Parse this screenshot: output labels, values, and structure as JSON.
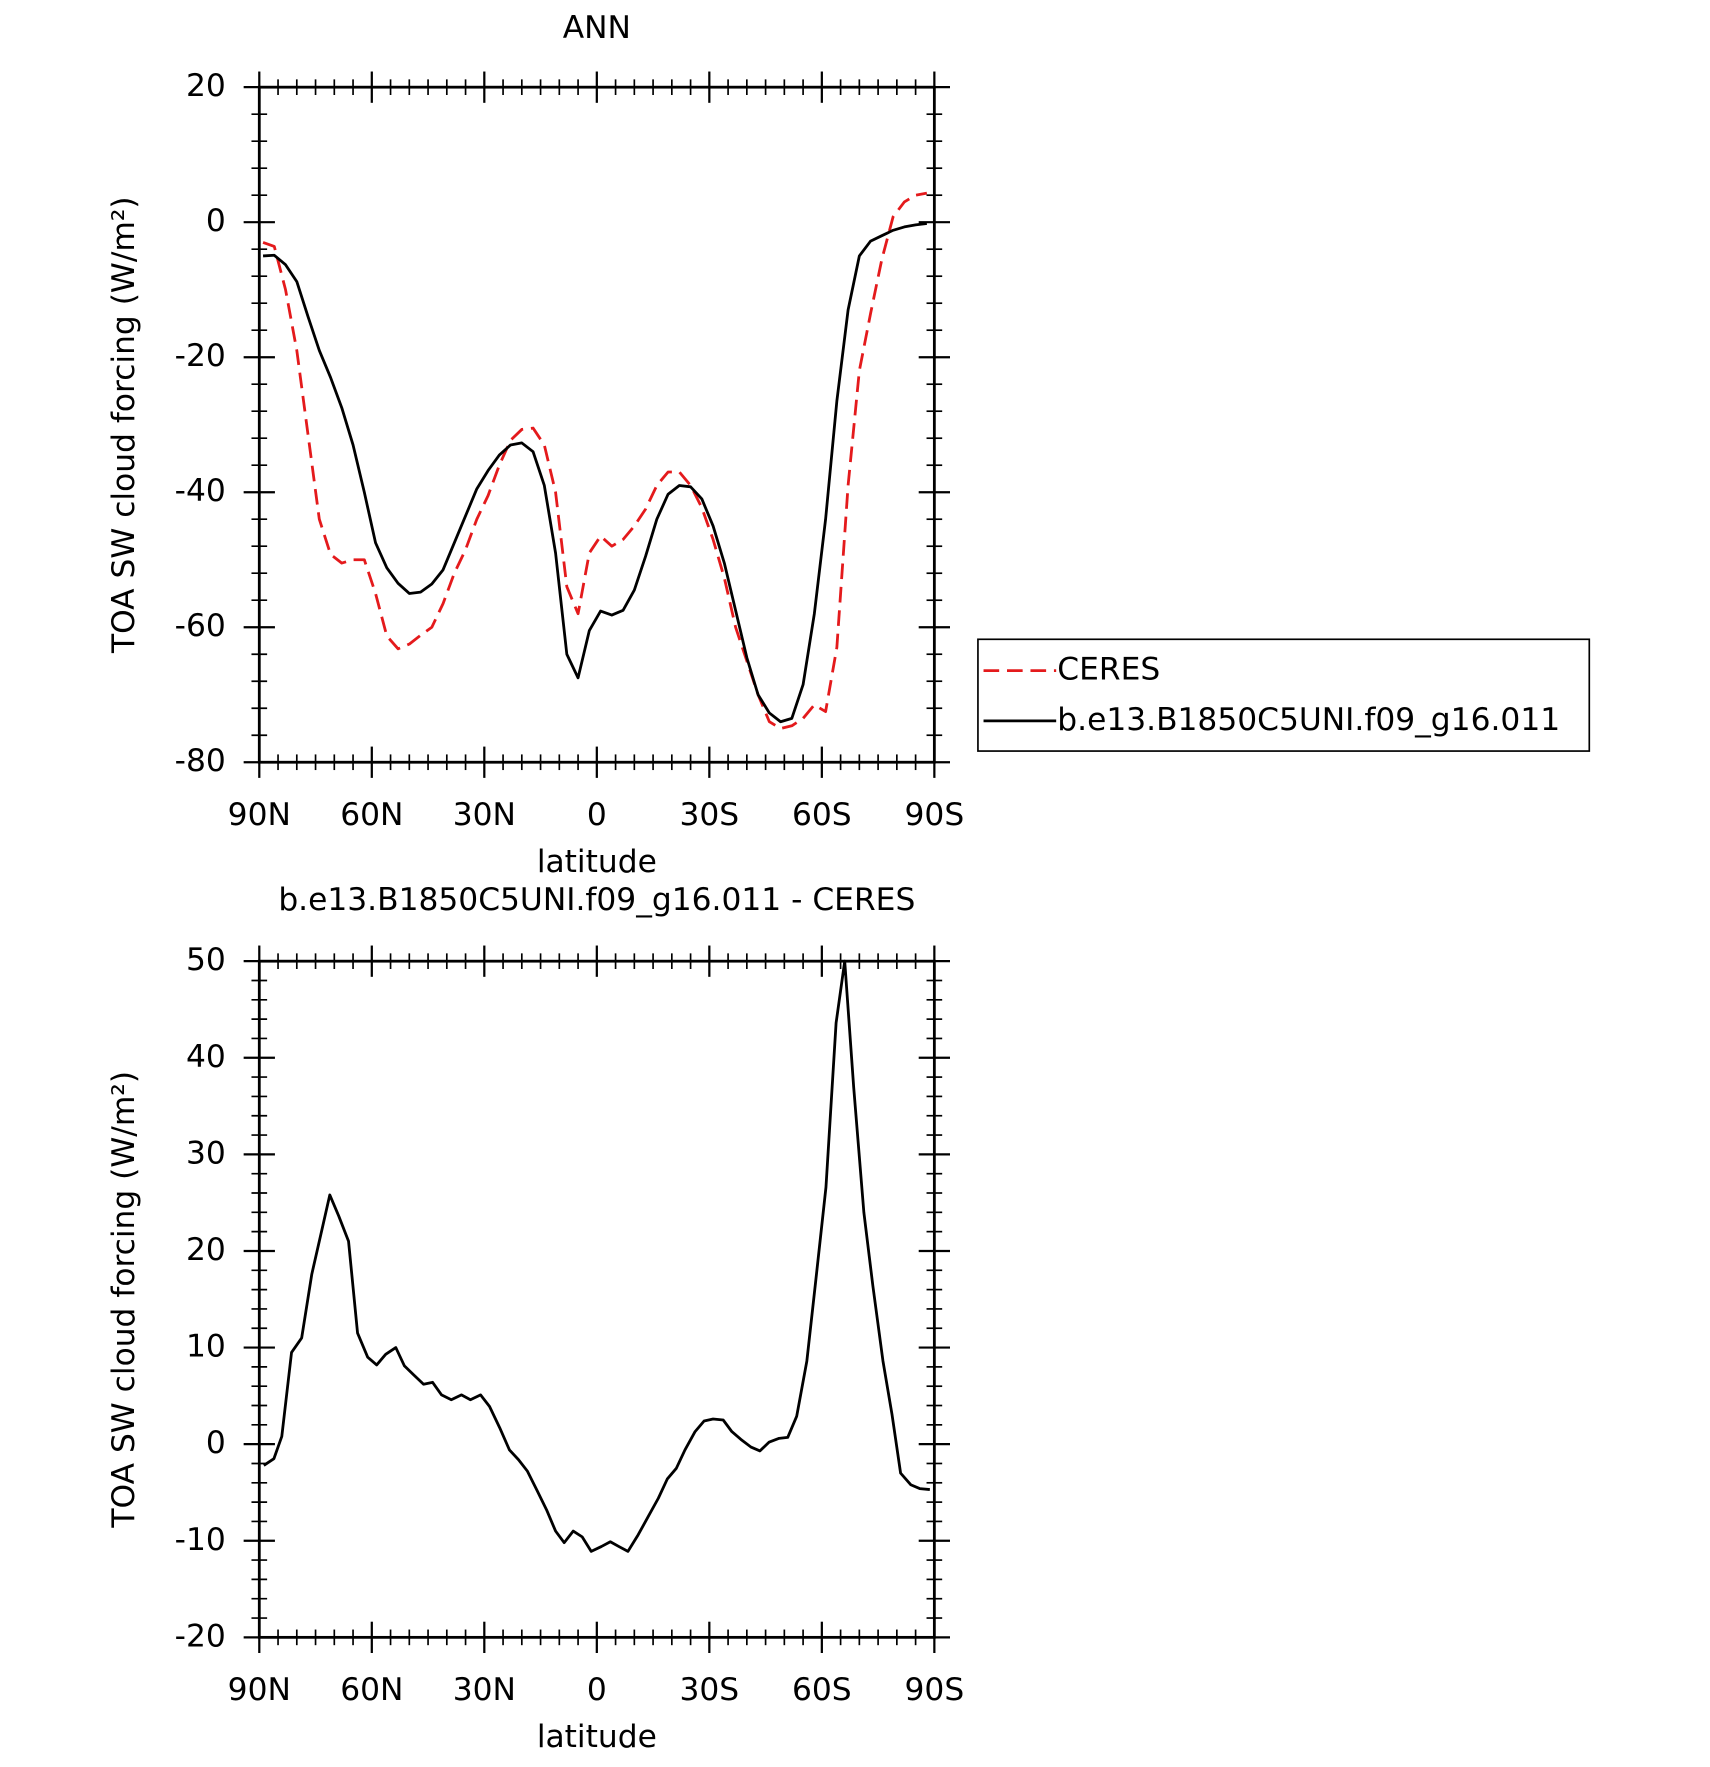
{
  "chart_data": [
    {
      "type": "line",
      "title": "ANN",
      "xlabel": "latitude",
      "ylabel": "TOA SW cloud forcing (W/m²)",
      "x": [
        89,
        86,
        83,
        80,
        77,
        74,
        71,
        68,
        65,
        62,
        59,
        56,
        53,
        50,
        47,
        44,
        41,
        38,
        35,
        32,
        29,
        26,
        23,
        20,
        17,
        14,
        11,
        8,
        5,
        2,
        -1,
        -4,
        -7,
        -10,
        -13,
        -16,
        -19,
        -22,
        -25,
        -28,
        -31,
        -34,
        -37,
        -40,
        -43,
        -46,
        -49,
        -52,
        -55,
        -58,
        -61,
        -64,
        -67,
        -70,
        -73,
        -76,
        -79,
        -82,
        -85,
        -88
      ],
      "series": [
        {
          "name": "CERES",
          "color": "#e41a1c",
          "line_style": "dashed",
          "values": [
            -3,
            -3.6,
            -10,
            -19,
            -31.5,
            -44,
            -49.2,
            -50.5,
            -50,
            -50,
            -55,
            -61.3,
            -63.2,
            -62.5,
            -61.2,
            -60,
            -56.5,
            -52,
            -48.5,
            -44,
            -40.5,
            -36,
            -32.3,
            -30.7,
            -30.5,
            -33,
            -40,
            -54,
            -58,
            -49,
            -46.5,
            -48,
            -47,
            -45,
            -42.5,
            -39,
            -37,
            -37,
            -39,
            -42.3,
            -47,
            -52.7,
            -60,
            -65,
            -70,
            -74,
            -75,
            -74.6,
            -73.5,
            -71.5,
            -72.5,
            -63,
            -39,
            -22,
            -13.5,
            -5.5,
            0.8,
            3,
            4,
            4.3
          ]
        },
        {
          "name": "b.e13.B1850C5UNI.f09_g16.011",
          "color": "#000000",
          "line_style": "solid",
          "values": [
            -5,
            -4.9,
            -6.3,
            -8.8,
            -14,
            -19,
            -23,
            -27.5,
            -33,
            -40,
            -47.5,
            -51.2,
            -53.5,
            -55,
            -54.8,
            -53.6,
            -51.5,
            -47.5,
            -43.5,
            -39.5,
            -36.8,
            -34.5,
            -33,
            -32.7,
            -34,
            -39,
            -49,
            -64,
            -67.5,
            -60.5,
            -57.6,
            -58.2,
            -57.5,
            -54.5,
            -49.5,
            -44,
            -40.3,
            -39,
            -39.2,
            -41,
            -45,
            -50.5,
            -57.5,
            -64.5,
            -70,
            -72.7,
            -74,
            -73.5,
            -68.5,
            -58,
            -44,
            -26.5,
            -13,
            -5,
            -2.8,
            -2,
            -1.2,
            -0.7,
            -0.4,
            -0.2
          ]
        }
      ],
      "xlim": [
        90,
        -90
      ],
      "xticks": [
        {
          "value": 90,
          "label": "90N"
        },
        {
          "value": 60,
          "label": "60N"
        },
        {
          "value": 30,
          "label": "30N"
        },
        0,
        {
          "value": -30,
          "label": "30S"
        },
        {
          "value": -60,
          "label": "60S"
        },
        {
          "value": -90,
          "label": "90S"
        }
      ],
      "ylim": [
        -80,
        20
      ],
      "yticks": [
        -80,
        -60,
        -40,
        -20,
        0,
        20
      ],
      "legend": "right"
    },
    {
      "type": "line",
      "title": "b.e13.B1850C5UNI.f09_g16.011 - CERES",
      "xlabel": "latitude",
      "ylabel": "TOA SW cloud forcing (W/m²)",
      "x": [
        88.8,
        86.1,
        84.0,
        81.4,
        78.7,
        76.0,
        73.3,
        71.2,
        68.8,
        66.2,
        63.8,
        61.1,
        58.7,
        56.3,
        53.6,
        51.3,
        48.9,
        46.2,
        43.8,
        41.4,
        38.8,
        36.1,
        33.7,
        31.0,
        28.6,
        25.9,
        23.3,
        20.9,
        18.5,
        15.8,
        13.4,
        11.0,
        8.7,
        6.3,
        3.9,
        1.5,
        -1.2,
        -3.6,
        -5.9,
        -8.3,
        -11.0,
        -13.7,
        -16.4,
        -18.8,
        -21.2,
        -23.5,
        -26.2,
        -28.6,
        -31.0,
        -33.7,
        -36.0,
        -38.4,
        -41.1,
        -43.5,
        -45.9,
        -48.6,
        -50.9,
        -53.3,
        -56.0,
        -58.4,
        -61.1,
        -63.8,
        -66.1,
        -68.5,
        -71.2,
        -73.6,
        -76.3,
        -78.7,
        -81.0,
        -83.7,
        -86.1,
        -88.8
      ],
      "values": [
        -2.2,
        -1.5,
        0.8,
        9.5,
        11,
        17.6,
        22.2,
        25.8,
        23.6,
        21,
        11.5,
        9,
        8.2,
        9.3,
        10,
        8.1,
        7.2,
        6.2,
        6.4,
        5.1,
        4.6,
        5.1,
        4.6,
        5.1,
        3.9,
        1.7,
        -0.6,
        -1.6,
        -2.8,
        -4.9,
        -6.8,
        -9,
        -10.2,
        -9,
        -9.6,
        -11.1,
        -10.6,
        -10.1,
        -10.6,
        -11.1,
        -9.4,
        -7.5,
        -5.6,
        -3.6,
        -2.5,
        -0.6,
        1.3,
        2.4,
        2.6,
        2.5,
        1.3,
        0.5,
        -0.3,
        -0.7,
        0.2,
        0.6,
        0.7,
        2.9,
        8.6,
        17,
        26.6,
        43.6,
        50,
        36.9,
        24,
        16.4,
        8.6,
        3.1,
        -3,
        -4.2,
        -4.6,
        -4.7
      ],
      "color": "#000000",
      "xlim": [
        90,
        -90
      ],
      "xticks": [
        {
          "value": 90,
          "label": "90N"
        },
        {
          "value": 60,
          "label": "60N"
        },
        {
          "value": 30,
          "label": "30N"
        },
        0,
        {
          "value": -30,
          "label": "30S"
        },
        {
          "value": -60,
          "label": "60S"
        },
        {
          "value": -90,
          "label": "90S"
        }
      ],
      "ylim": [
        -20,
        50
      ],
      "yticks": [
        -20,
        -10,
        0,
        10,
        20,
        30,
        40,
        50
      ]
    }
  ]
}
